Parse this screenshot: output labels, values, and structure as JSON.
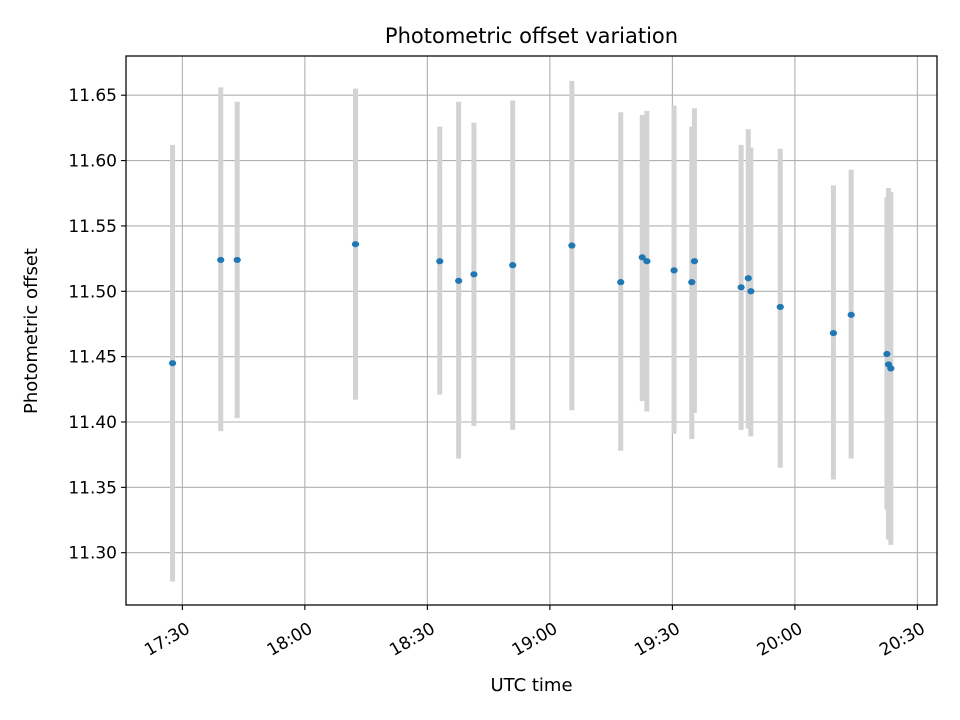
{
  "chart_data": {
    "type": "scatter",
    "title": "Photometric offset variation",
    "xlabel": "UTC time",
    "ylabel": "Photometric offset",
    "xlim_minutes": [
      1036.2,
      1234.8
    ],
    "ylim": [
      11.26,
      11.68
    ],
    "x_ticks": [
      {
        "minutes": 1050,
        "label": "17:30"
      },
      {
        "minutes": 1080,
        "label": "18:00"
      },
      {
        "minutes": 1110,
        "label": "18:30"
      },
      {
        "minutes": 1140,
        "label": "19:00"
      },
      {
        "minutes": 1170,
        "label": "19:30"
      },
      {
        "minutes": 1200,
        "label": "20:00"
      },
      {
        "minutes": 1230,
        "label": "20:30"
      }
    ],
    "y_ticks": [
      11.3,
      11.35,
      11.4,
      11.45,
      11.5,
      11.55,
      11.6,
      11.65
    ],
    "grid": true,
    "point_color": "#1f77b4",
    "errorbar_color": "#d3d3d3",
    "points": [
      {
        "time": "17:27:36",
        "y": 11.445,
        "lo": 11.278,
        "hi": 11.612
      },
      {
        "time": "17:39:24",
        "y": 11.524,
        "lo": 11.393,
        "hi": 11.656
      },
      {
        "time": "17:43:26",
        "y": 11.524,
        "lo": 11.403,
        "hi": 11.645
      },
      {
        "time": "18:12:24",
        "y": 11.536,
        "lo": 11.417,
        "hi": 11.655
      },
      {
        "time": "18:33:02",
        "y": 11.523,
        "lo": 11.421,
        "hi": 11.626
      },
      {
        "time": "18:37:40",
        "y": 11.508,
        "lo": 11.372,
        "hi": 11.645
      },
      {
        "time": "18:41:24",
        "y": 11.513,
        "lo": 11.397,
        "hi": 11.629
      },
      {
        "time": "18:50:54",
        "y": 11.52,
        "lo": 11.394,
        "hi": 11.646
      },
      {
        "time": "19:05:23",
        "y": 11.535,
        "lo": 11.409,
        "hi": 11.661
      },
      {
        "time": "19:17:21",
        "y": 11.507,
        "lo": 11.378,
        "hi": 11.637
      },
      {
        "time": "19:22:37",
        "y": 11.526,
        "lo": 11.416,
        "hi": 11.635
      },
      {
        "time": "19:23:45",
        "y": 11.523,
        "lo": 11.408,
        "hi": 11.638
      },
      {
        "time": "19:30:25",
        "y": 11.516,
        "lo": 11.391,
        "hi": 11.642
      },
      {
        "time": "19:34:45",
        "y": 11.507,
        "lo": 11.387,
        "hi": 11.626
      },
      {
        "time": "19:35:24",
        "y": 11.523,
        "lo": 11.407,
        "hi": 11.64
      },
      {
        "time": "19:46:50",
        "y": 11.503,
        "lo": 11.394,
        "hi": 11.612
      },
      {
        "time": "19:48:35",
        "y": 11.51,
        "lo": 11.395,
        "hi": 11.624
      },
      {
        "time": "19:49:13",
        "y": 11.5,
        "lo": 11.389,
        "hi": 11.61
      },
      {
        "time": "19:56:25",
        "y": 11.488,
        "lo": 11.365,
        "hi": 11.609
      },
      {
        "time": "20:09:26",
        "y": 11.468,
        "lo": 11.356,
        "hi": 11.581
      },
      {
        "time": "20:13:47",
        "y": 11.482,
        "lo": 11.372,
        "hi": 11.593
      },
      {
        "time": "20:22:32",
        "y": 11.452,
        "lo": 11.333,
        "hi": 11.572
      },
      {
        "time": "20:22:55",
        "y": 11.444,
        "lo": 11.31,
        "hi": 11.579
      },
      {
        "time": "20:23:30",
        "y": 11.441,
        "lo": 11.306,
        "hi": 11.576
      }
    ]
  }
}
